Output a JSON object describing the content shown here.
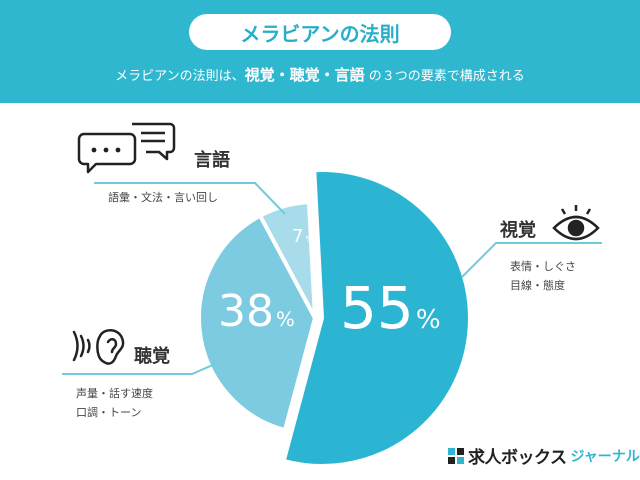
{
  "header": {
    "title": "メラビアンの法則",
    "subtitle_prefix": "メラビアンの法則は、",
    "subtitle_items": "視覚・聴覚・言語",
    "subtitle_suffix": " の３つの要素で構成される"
  },
  "categories": [
    {
      "name": "視覚",
      "value": 55,
      "pct_label": "55",
      "unit": "%",
      "desc": [
        "表情・しぐさ",
        "目線・態度"
      ],
      "icon": "eye-icon"
    },
    {
      "name": "聴覚",
      "value": 38,
      "pct_label": "38",
      "unit": "%",
      "desc": [
        "声量・話す速度",
        "口調・トーン"
      ],
      "icon": "ear-icon"
    },
    {
      "name": "言語",
      "value": 7,
      "pct_label": "7",
      "unit": "%",
      "desc": [
        "語彙・文法・言い回し"
      ],
      "icon": "speech-bubbles-icon"
    }
  ],
  "colors": {
    "header": "#2fb7cf",
    "visual": "#2bb5d3",
    "auditory": "#7dcbe0",
    "verbal": "#a9dcea",
    "leader": "#6fcbdc"
  },
  "logo": {
    "text": "求人ボックス",
    "sub": "ジャーナル"
  }
}
